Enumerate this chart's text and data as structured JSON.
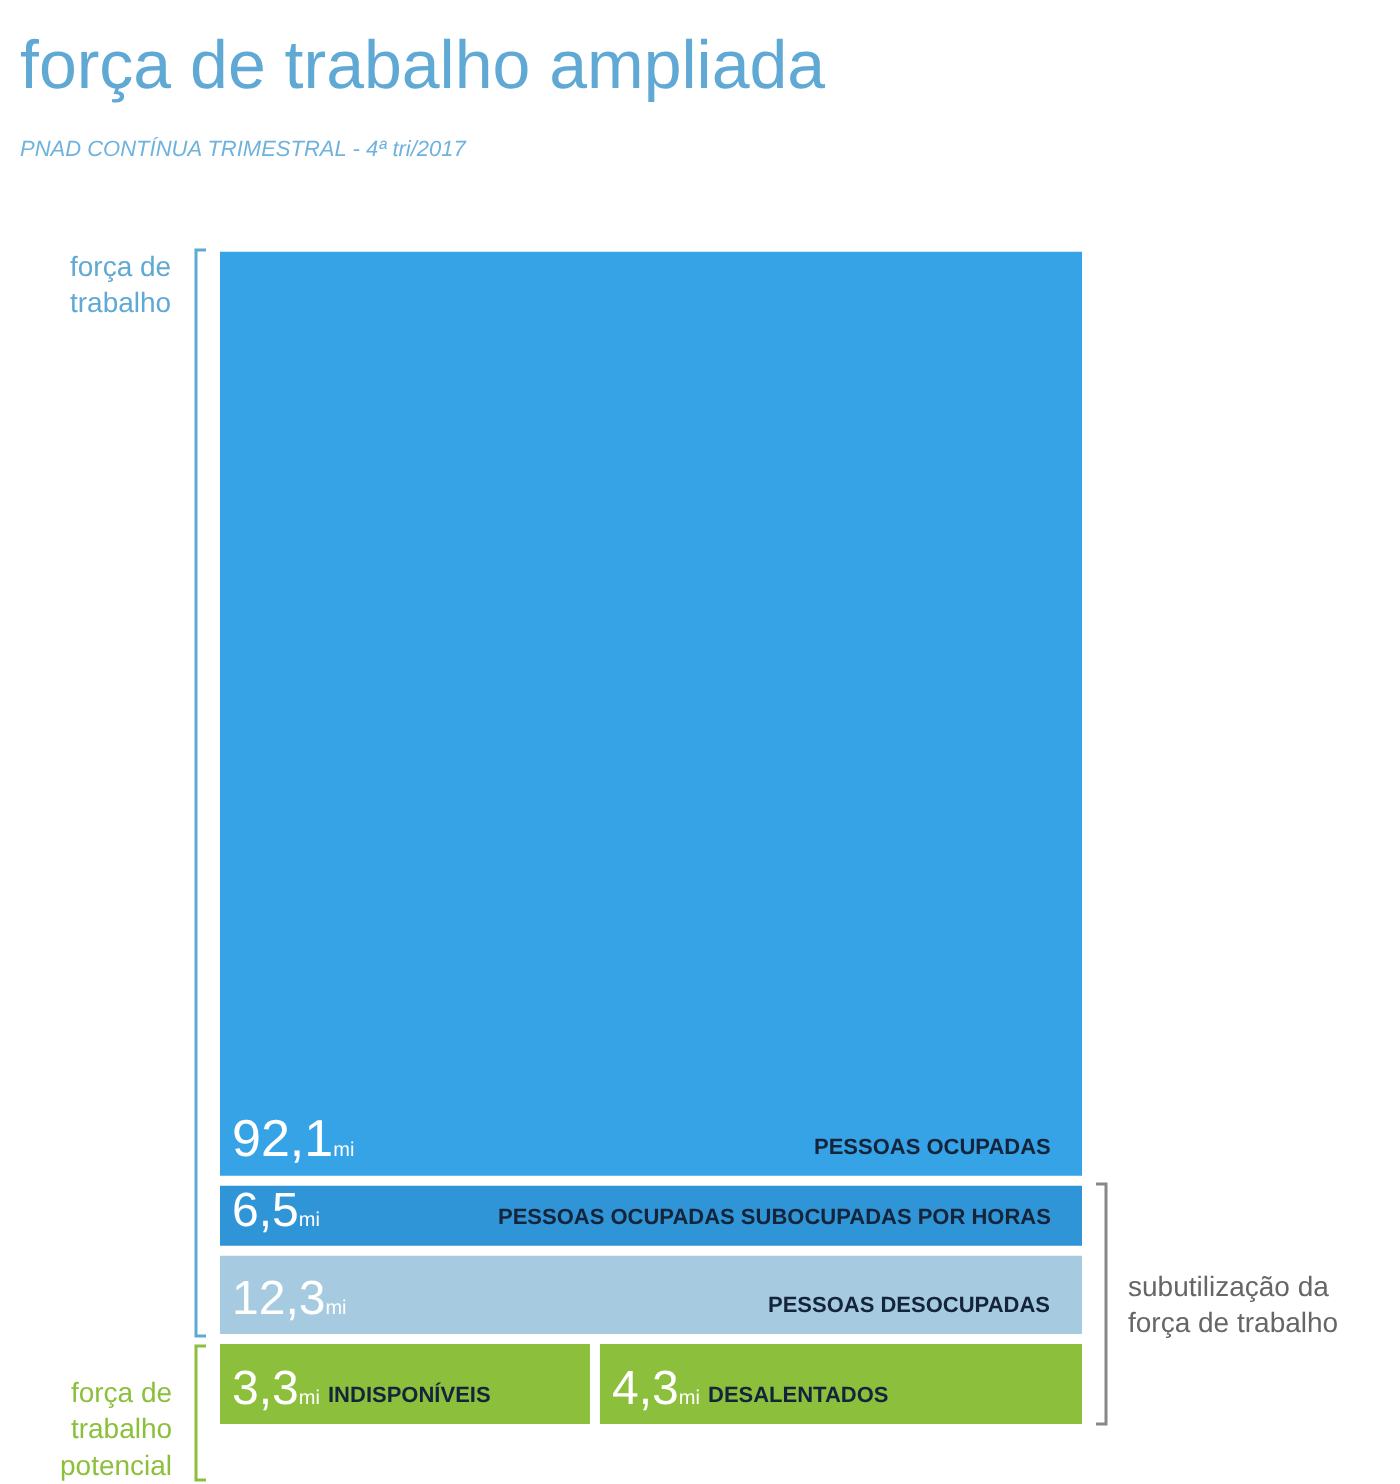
{
  "chart_data": {
    "type": "other",
    "title": "força de trabalho ampliada",
    "subtitle": "PNAD CONTÍNUA TRIMESTRAL - 4ª tri/2017",
    "categories": [
      "PESSOAS OCUPADAS",
      "PESSOAS OCUPADAS SUBOCUPADAS POR HORAS",
      "PESSOAS DESOCUPADAS",
      "INDISPONÍVEIS",
      "DESALENTADOS"
    ],
    "values": [
      92.1,
      6.5,
      12.3,
      3.3,
      4.3
    ],
    "value_labels": [
      "92,1mi",
      "6,5mi",
      "12,3mi",
      "3,3mi",
      "4,3mi"
    ],
    "colors": [
      "#36a3e7",
      "#2f95d6",
      "#a6cbe0",
      "#8cc03c",
      "#8cc03c"
    ],
    "annotations": [
      "força de\ntrabalho",
      "força de\ntrabalho\npotencial",
      "subutilização da\nforça de trabalho"
    ]
  }
}
